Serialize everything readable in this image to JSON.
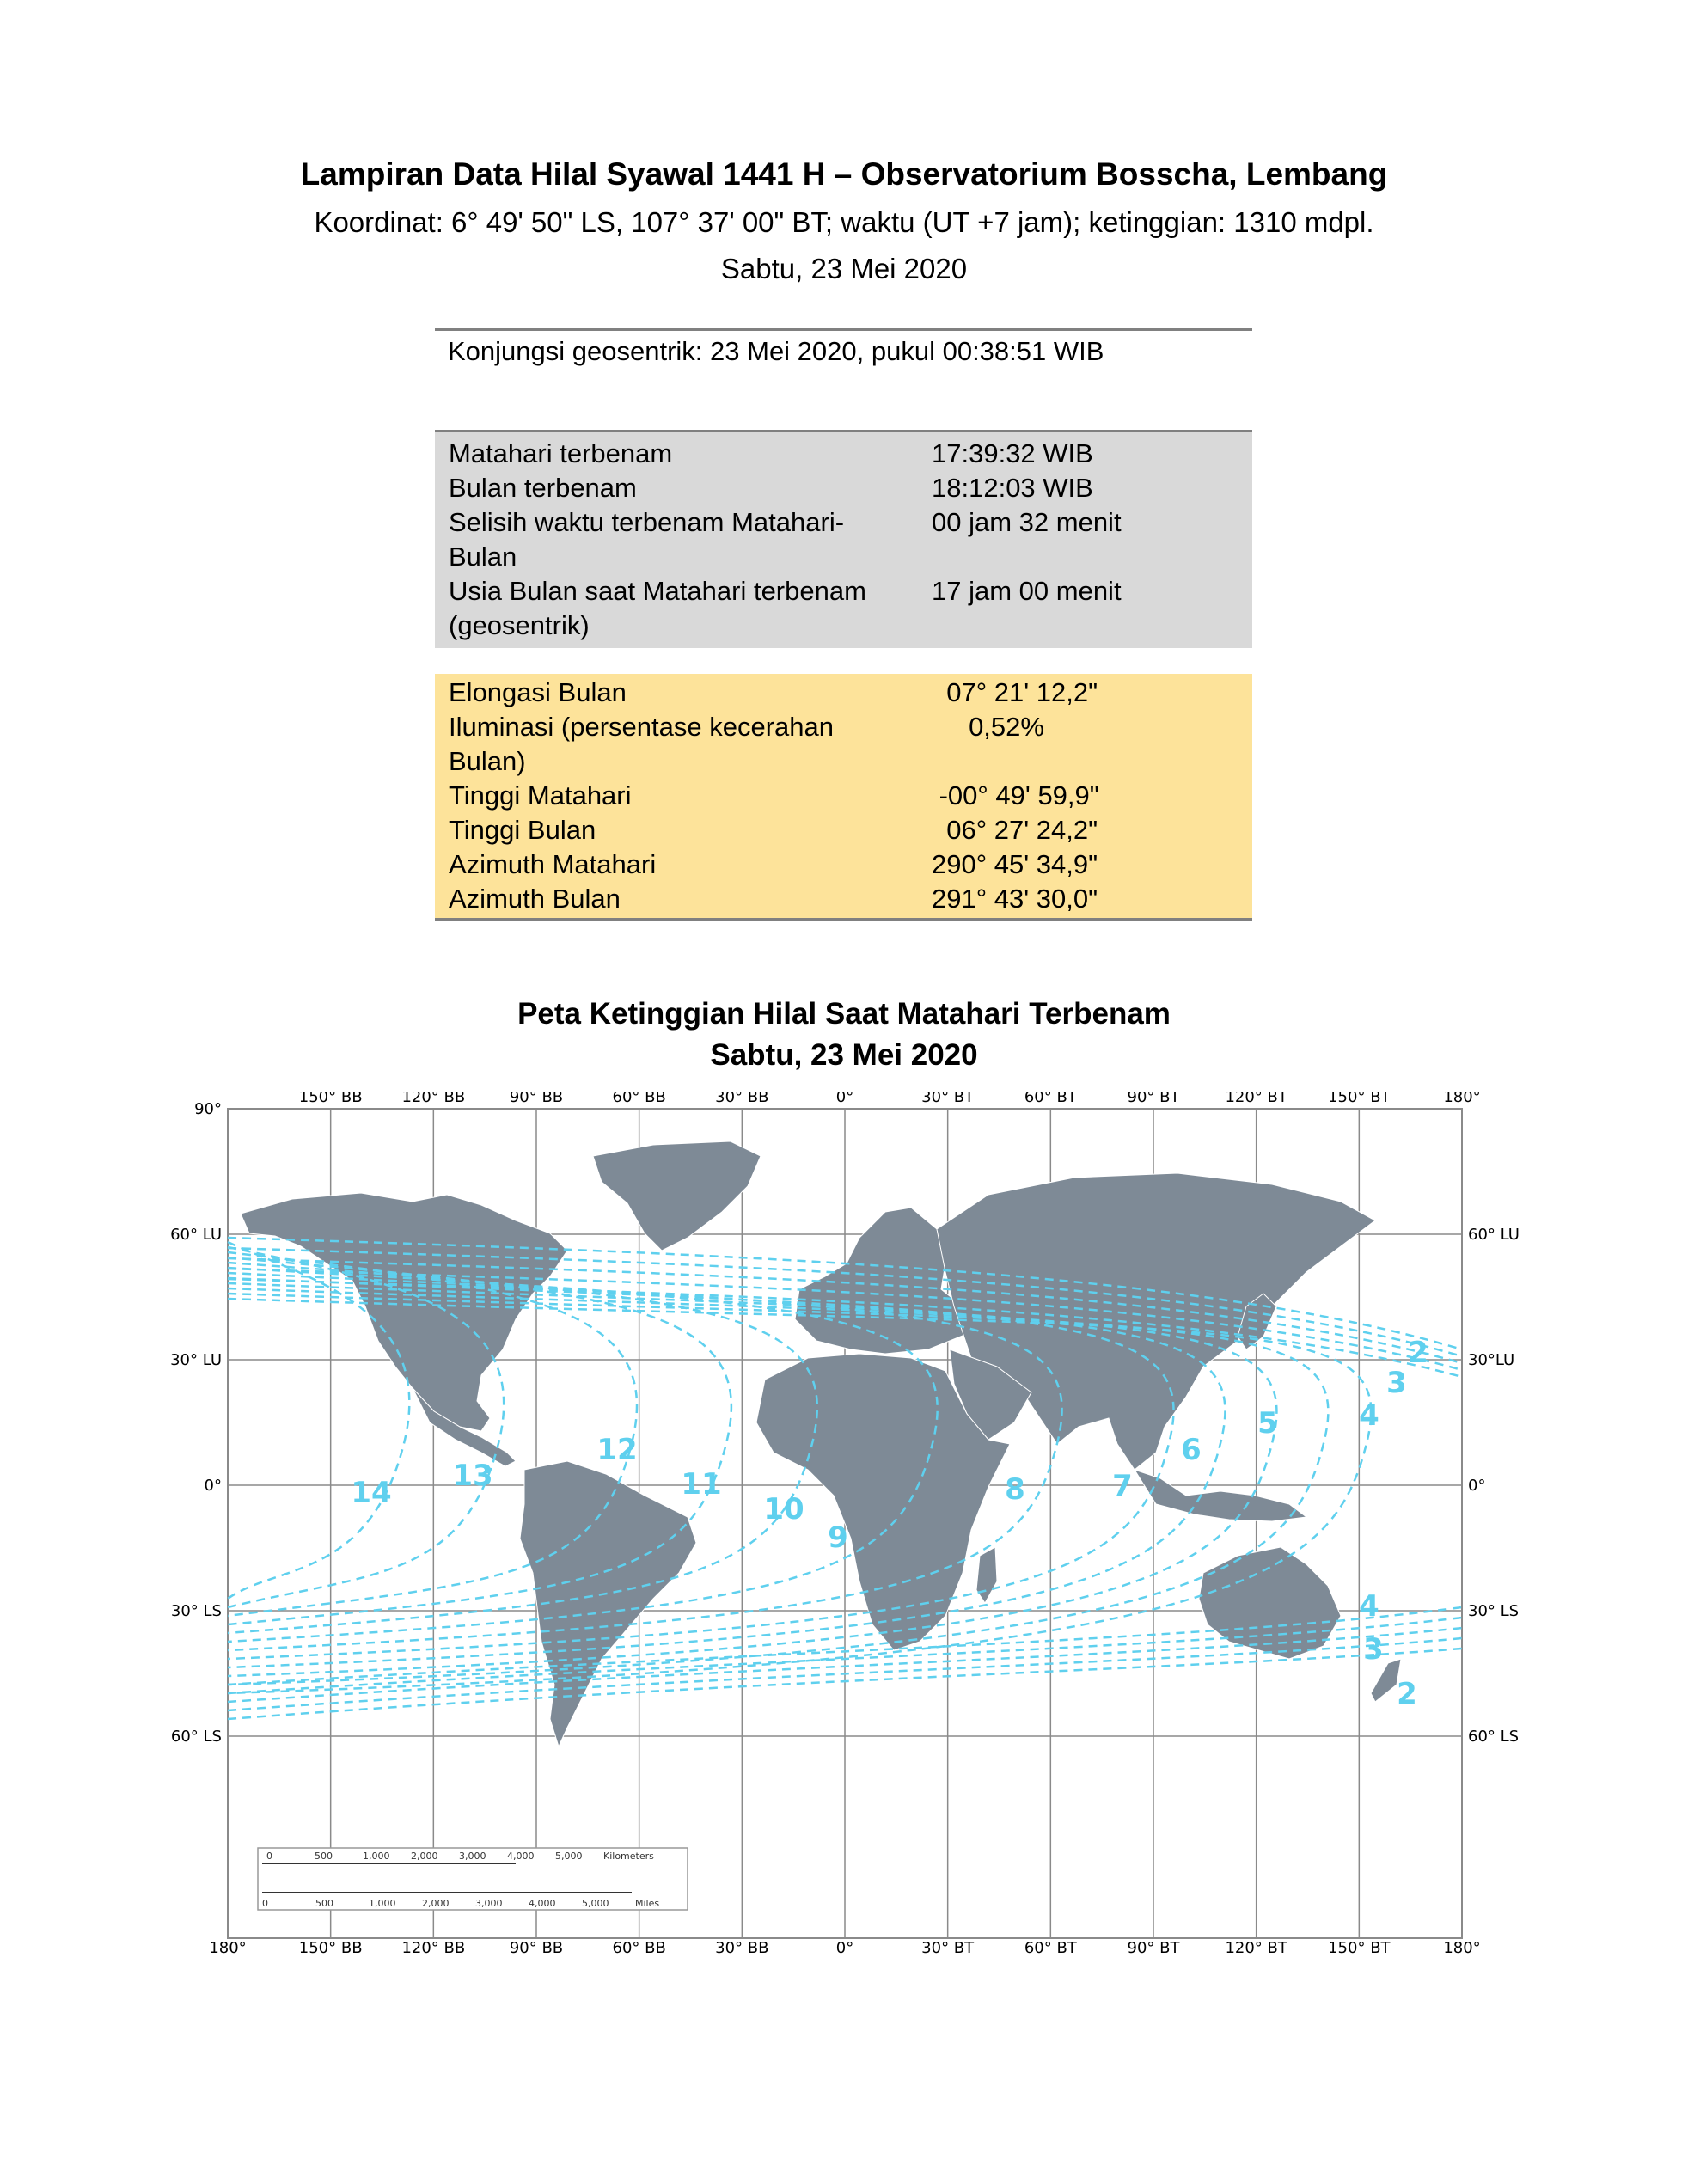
{
  "header": {
    "title": "Lampiran Data Hilal Syawal 1441 H – Observatorium Bosscha, Lembang",
    "coords": "Koordinat: 6° 49' 50\" LS, 107° 37' 00\" BT; waktu (UT +7 jam); ketinggian: 1310 mdpl.",
    "date": "Sabtu, 23 Mei 2020"
  },
  "conjunction": "Konjungsi geosentrik: 23 Mei 2020, pukul 00:38:51 WIB",
  "table_times": [
    {
      "label": "Matahari terbenam",
      "value": "17:39:32 WIB"
    },
    {
      "label": "Bulan terbenam",
      "value": "18:12:03 WIB"
    },
    {
      "label": "Selisih waktu terbenam Matahari-Bulan",
      "value": "00 jam 32 menit"
    },
    {
      "label": "Usia Bulan saat Matahari terbenam (geosentrik)",
      "value": "17 jam 00 menit"
    }
  ],
  "table_positions": [
    {
      "label": "Elongasi Bulan",
      "value": "  07° 21' 12,2\""
    },
    {
      "label": "Iluminasi (persentase kecerahan Bulan)",
      "value": "     0,52%"
    },
    {
      "label": "Tinggi Matahari",
      "value": " -00° 49' 59,9\""
    },
    {
      "label": "Tinggi Bulan",
      "value": "  06° 27' 24,2\""
    },
    {
      "label": "Azimuth Matahari",
      "value": "290° 45' 34,9\""
    },
    {
      "label": "Azimuth Bulan",
      "value": "291° 43' 30,0\""
    }
  ],
  "map": {
    "title_line1": "Peta Ketinggian Hilal Saat Matahari Terbenam",
    "title_line2": "Sabtu, 23 Mei 2020",
    "top_axis": [
      "150° BB",
      "120° BB",
      "90° BB",
      "60° BB",
      "30° BB",
      "0°",
      "30° BT",
      "60° BT",
      "90° BT",
      "120° BT",
      "150° BT",
      "180°"
    ],
    "bottom_axis": [
      "180°",
      "150° BB",
      "120° BB",
      "90° BB",
      "60° BB",
      "30° BB",
      "0°",
      "30° BT",
      "60° BT",
      "90° BT",
      "120° BT",
      "150° BT",
      "180°"
    ],
    "left_axis": [
      "90°",
      "60° LU",
      "30° LU",
      "0°",
      "30° LS",
      "60° LS"
    ],
    "right_axis": [
      "60° LU",
      "30°LU",
      "0°",
      "30° LS",
      "60° LS"
    ],
    "contour_labels": [
      "2",
      "3",
      "4",
      "5",
      "6",
      "7",
      "8",
      "9",
      "10",
      "11",
      "12",
      "13",
      "14",
      "4",
      "3",
      "2"
    ],
    "colors": {
      "land": "#7e8a96",
      "contour": "#5fd0ee",
      "grid": "#8a8a8a"
    },
    "scale_km": [
      "0",
      "500",
      "1,000",
      "2,000",
      "3,000",
      "4,000",
      "5,000",
      "Kilometers"
    ],
    "scale_mi": [
      "0",
      "500",
      "1,000",
      "2,000",
      "3,000",
      "4,000",
      "5,000",
      "Miles"
    ]
  }
}
